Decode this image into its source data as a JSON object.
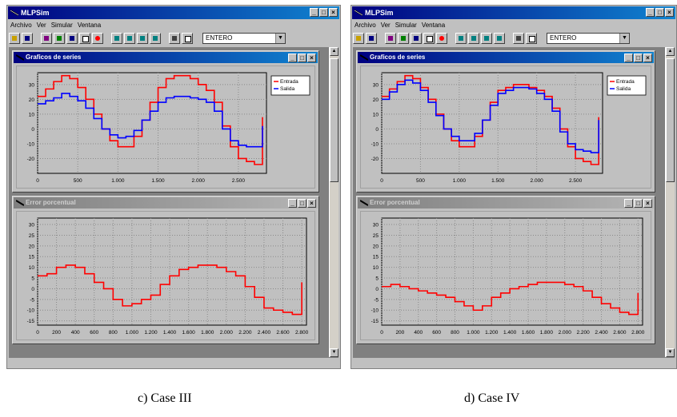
{
  "captions": {
    "left": "c) Case III",
    "right": "d) Case IV"
  },
  "app": {
    "title": "MLPSim",
    "menu": [
      "Archivo",
      "Ver",
      "Simular",
      "Ventana"
    ],
    "combo_value": "ENTERO",
    "min_label": "_",
    "max_label": "□",
    "close_label": "×"
  },
  "windows": {
    "series_title": "Graficos de series",
    "error_title": "Error porcentual"
  },
  "legend": {
    "entrada": "Entrada",
    "salida": "Salida"
  },
  "colors": {
    "entrada": "#ff0000",
    "salida": "#0000ff",
    "error": "#ff0000"
  },
  "chart_data": [
    {
      "panel": "Case III - Graficos de series",
      "type": "line",
      "xlim": [
        0,
        2850
      ],
      "ylim": [
        -30,
        38
      ],
      "xticks": [
        0,
        500,
        1000,
        1500,
        2000,
        2500
      ],
      "xtick_labels": [
        "0",
        "500",
        "1.000",
        "1.500",
        "2.000",
        "2.500"
      ],
      "yticks": [
        -20,
        -10,
        0,
        10,
        20,
        30
      ],
      "grid": true,
      "legend": "top-right",
      "series": [
        {
          "name": "Entrada",
          "x": [
            0,
            100,
            200,
            300,
            400,
            500,
            600,
            700,
            800,
            900,
            1000,
            1100,
            1200,
            1300,
            1400,
            1500,
            1600,
            1700,
            1800,
            1900,
            2000,
            2100,
            2200,
            2300,
            2400,
            2500,
            2600,
            2700,
            2800
          ],
          "y": [
            22,
            27,
            32,
            36,
            34,
            28,
            20,
            10,
            0,
            -8,
            -12,
            -12,
            -5,
            6,
            18,
            28,
            34,
            36,
            36,
            34,
            30,
            26,
            18,
            2,
            -12,
            -20,
            -22,
            -24,
            8
          ]
        },
        {
          "name": "Salida",
          "x": [
            0,
            100,
            200,
            300,
            400,
            500,
            600,
            700,
            800,
            900,
            1000,
            1100,
            1200,
            1300,
            1400,
            1500,
            1600,
            1700,
            1800,
            1900,
            2000,
            2100,
            2200,
            2300,
            2400,
            2500,
            2600,
            2700,
            2800
          ],
          "y": [
            17,
            19,
            21,
            24,
            22,
            19,
            14,
            7,
            0,
            -4,
            -6,
            -5,
            -1,
            6,
            12,
            18,
            21,
            22,
            22,
            21,
            20,
            18,
            12,
            0,
            -8,
            -11,
            -12,
            -12,
            2
          ]
        }
      ]
    },
    {
      "panel": "Case III - Error porcentual",
      "type": "line",
      "xlim": [
        0,
        2850
      ],
      "ylim": [
        -17,
        33
      ],
      "xticks": [
        0,
        200,
        400,
        600,
        800,
        1000,
        1200,
        1400,
        1600,
        1800,
        2000,
        2200,
        2400,
        2600,
        2800
      ],
      "xtick_labels": [
        "0",
        "200",
        "400",
        "600",
        "800",
        "1.000",
        "1.200",
        "1.400",
        "1.600",
        "1.800",
        "2.000",
        "2.200",
        "2.400",
        "2.600",
        "2.800"
      ],
      "yticks": [
        -15,
        -10,
        -5,
        0,
        5,
        10,
        15,
        20,
        25,
        30
      ],
      "grid": true,
      "series": [
        {
          "x": [
            0,
            100,
            200,
            300,
            400,
            500,
            600,
            700,
            800,
            900,
            1000,
            1100,
            1200,
            1300,
            1400,
            1500,
            1600,
            1700,
            1800,
            1900,
            2000,
            2100,
            2200,
            2300,
            2400,
            2500,
            2600,
            2700,
            2800
          ],
          "y": [
            6,
            7,
            10,
            11,
            10,
            7,
            3,
            0,
            -5,
            -8,
            -7,
            -5,
            -3,
            2,
            6,
            9,
            10,
            11,
            11,
            10,
            8,
            6,
            1,
            -4,
            -9,
            -10,
            -11,
            -12,
            3
          ]
        }
      ]
    },
    {
      "panel": "Case IV - Graficos de series",
      "type": "line",
      "xlim": [
        0,
        2850
      ],
      "ylim": [
        -30,
        38
      ],
      "xticks": [
        0,
        500,
        1000,
        1500,
        2000,
        2500
      ],
      "xtick_labels": [
        "0",
        "500",
        "1.000",
        "1.500",
        "2.000",
        "2.500"
      ],
      "yticks": [
        -20,
        -10,
        0,
        10,
        20,
        30
      ],
      "grid": true,
      "legend": "top-right",
      "series": [
        {
          "name": "Entrada",
          "x": [
            0,
            100,
            200,
            300,
            400,
            500,
            600,
            700,
            800,
            900,
            1000,
            1100,
            1200,
            1300,
            1400,
            1500,
            1600,
            1700,
            1800,
            1900,
            2000,
            2100,
            2200,
            2300,
            2400,
            2500,
            2600,
            2700,
            2800
          ],
          "y": [
            22,
            27,
            32,
            36,
            34,
            28,
            20,
            10,
            0,
            -8,
            -12,
            -12,
            -5,
            6,
            18,
            26,
            28,
            30,
            30,
            28,
            26,
            22,
            14,
            0,
            -12,
            -20,
            -22,
            -24,
            8
          ]
        },
        {
          "name": "Salida",
          "x": [
            0,
            100,
            200,
            300,
            400,
            500,
            600,
            700,
            800,
            900,
            1000,
            1100,
            1200,
            1300,
            1400,
            1500,
            1600,
            1700,
            1800,
            1900,
            2000,
            2100,
            2200,
            2300,
            2400,
            2500,
            2600,
            2700,
            2800
          ],
          "y": [
            20,
            25,
            30,
            33,
            31,
            26,
            18,
            9,
            0,
            -5,
            -8,
            -8,
            -3,
            6,
            16,
            24,
            26,
            28,
            28,
            27,
            24,
            20,
            12,
            -2,
            -10,
            -14,
            -15,
            -16,
            6
          ]
        }
      ]
    },
    {
      "panel": "Case IV - Error porcentual",
      "type": "line",
      "xlim": [
        0,
        2850
      ],
      "ylim": [
        -17,
        33
      ],
      "xticks": [
        0,
        200,
        400,
        600,
        800,
        1000,
        1200,
        1400,
        1600,
        1800,
        2000,
        2200,
        2400,
        2600,
        2800
      ],
      "xtick_labels": [
        "0",
        "200",
        "400",
        "600",
        "800",
        "1.000",
        "1.200",
        "1.400",
        "1.600",
        "1.800",
        "2.000",
        "2.200",
        "2.400",
        "2.600",
        "2.800"
      ],
      "yticks": [
        -15,
        -10,
        -5,
        0,
        5,
        10,
        15,
        20,
        25,
        30
      ],
      "grid": true,
      "series": [
        {
          "x": [
            0,
            100,
            200,
            300,
            400,
            500,
            600,
            700,
            800,
            900,
            1000,
            1100,
            1200,
            1300,
            1400,
            1500,
            1600,
            1700,
            1800,
            1900,
            2000,
            2100,
            2200,
            2300,
            2400,
            2500,
            2600,
            2700,
            2800
          ],
          "y": [
            1,
            2,
            1,
            0,
            -1,
            -2,
            -3,
            -4,
            -6,
            -8,
            -10,
            -8,
            -4,
            -2,
            0,
            1,
            2,
            3,
            3,
            3,
            2,
            1,
            -1,
            -4,
            -7,
            -9,
            -11,
            -12,
            -2
          ]
        }
      ]
    }
  ]
}
